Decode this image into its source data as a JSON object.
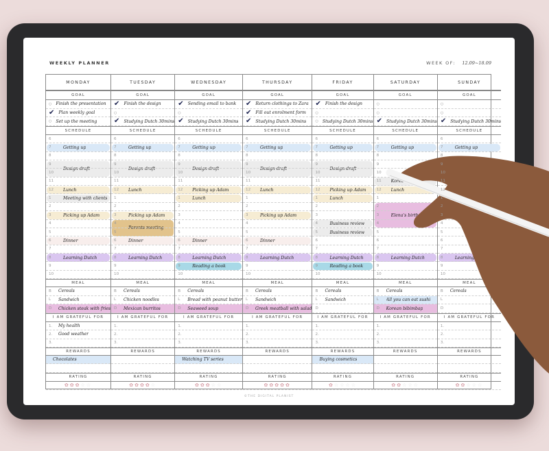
{
  "planner": {
    "title": "WEEKLY PLANNER",
    "week_of_label": "WEEK OF:",
    "week_of_value": "12.09~18.09",
    "footer": "©THE DIGITAL PLANIST",
    "section_labels": {
      "goal": "GOAL",
      "schedule": "SCHEDULE",
      "meal": "MEAL",
      "grateful": "I AM GRATEFUL FOR",
      "rewards": "REWARDS",
      "rating": "RATING"
    },
    "hours": [
      "6",
      "7",
      "8",
      "9",
      "10",
      "11",
      "12",
      "1",
      "2",
      "3",
      "4",
      "5",
      "6",
      "7",
      "8",
      "9",
      "10"
    ],
    "meal_keys": [
      "B",
      "L",
      "D"
    ],
    "grateful_nums": [
      "1.",
      "2.",
      "3."
    ],
    "rating_max": 5,
    "colors": {
      "blue": "#d9e8f7",
      "gray": "#ececec",
      "yellow": "#f6ecd3",
      "tan": "#e2c38c",
      "blush": "#f8eeec",
      "purple": "#dac6f0",
      "teal": "#a8d9e7",
      "pink": "#e8bde0"
    },
    "days": [
      {
        "name": "MONDAY",
        "goals": [
          {
            "done": false,
            "text": "Finish the presentation"
          },
          {
            "done": true,
            "text": "Plan weekly goal"
          },
          {
            "done": false,
            "text": "Set up the meeting"
          }
        ],
        "events": [
          {
            "hour": 1,
            "span": 1,
            "text": "Getting up",
            "color": "blue"
          },
          {
            "hour": 3,
            "span": 2,
            "text": "Design draft",
            "color": "gray"
          },
          {
            "hour": 6,
            "span": 1,
            "text": "Lunch",
            "color": "yellow"
          },
          {
            "hour": 7,
            "span": 1,
            "text": "Meeting with clients",
            "color": "gray"
          },
          {
            "hour": 9,
            "span": 1,
            "text": "Picking up Adam",
            "color": "yellow"
          },
          {
            "hour": 12,
            "span": 1,
            "text": "Dinner",
            "color": "blush"
          },
          {
            "hour": 14,
            "span": 1,
            "text": "Learning Dutch",
            "color": "purple"
          }
        ],
        "meals": [
          "Cereals",
          "Sandwich",
          "Chicken steak with fries"
        ],
        "dinner_highlight": true,
        "grateful": [
          "My health",
          "Good weather",
          ""
        ],
        "rewards": [
          "Chocolates",
          ""
        ],
        "rating": 3
      },
      {
        "name": "TUESDAY",
        "goals": [
          {
            "done": true,
            "text": "Finish the design"
          },
          {
            "done": false,
            "text": ""
          },
          {
            "done": true,
            "text": "Studying Dutch 30mins"
          }
        ],
        "events": [
          {
            "hour": 1,
            "span": 1,
            "text": "Getting up",
            "color": "blue"
          },
          {
            "hour": 3,
            "span": 2,
            "text": "Design draft",
            "color": "gray"
          },
          {
            "hour": 6,
            "span": 1,
            "text": "Lunch",
            "color": "yellow"
          },
          {
            "hour": 9,
            "span": 1,
            "text": "Picking up Adam",
            "color": "yellow"
          },
          {
            "hour": 10,
            "span": 2,
            "text": "Parents meeting",
            "color": "tan"
          },
          {
            "hour": 12,
            "span": 1,
            "text": "Dinner",
            "color": "blush"
          },
          {
            "hour": 14,
            "span": 1,
            "text": "Learning Dutch",
            "color": "purple"
          }
        ],
        "meals": [
          "Cereals",
          "Chicken noodles",
          "Mexican burritos"
        ],
        "dinner_highlight": true,
        "grateful": [
          "",
          "",
          ""
        ],
        "rewards": [
          "",
          ""
        ],
        "rating": 4
      },
      {
        "name": "WEDNESDAY",
        "goals": [
          {
            "done": true,
            "text": "Sending email to bank"
          },
          {
            "done": false,
            "text": ""
          },
          {
            "done": true,
            "text": "Studying Dutch 30mins"
          }
        ],
        "events": [
          {
            "hour": 1,
            "span": 1,
            "text": "Getting up",
            "color": "blue"
          },
          {
            "hour": 3,
            "span": 2,
            "text": "Design draft",
            "color": "gray"
          },
          {
            "hour": 6,
            "span": 1,
            "text": "Picking up Adam",
            "color": "yellow"
          },
          {
            "hour": 7,
            "span": 1,
            "text": "Lunch",
            "color": "yellow"
          },
          {
            "hour": 12,
            "span": 1,
            "text": "Dinner",
            "color": "blush"
          },
          {
            "hour": 14,
            "span": 1,
            "text": "Learning Dutch",
            "color": "purple"
          },
          {
            "hour": 15,
            "span": 1,
            "text": "Reading a book",
            "color": "teal"
          }
        ],
        "meals": [
          "Cereals",
          "Bread with peanut butter",
          "Seaweed soup"
        ],
        "dinner_highlight": true,
        "grateful": [
          "",
          "",
          ""
        ],
        "rewards": [
          "Watching TV series",
          ""
        ],
        "rating": 3
      },
      {
        "name": "THURSDAY",
        "goals": [
          {
            "done": true,
            "text": "Return clothings to Zara"
          },
          {
            "done": true,
            "text": "Fill out enrolment form"
          },
          {
            "done": true,
            "text": "Studying Dutch 30mins"
          }
        ],
        "events": [
          {
            "hour": 1,
            "span": 1,
            "text": "Getting up",
            "color": "blue"
          },
          {
            "hour": 3,
            "span": 2,
            "text": "Design draft",
            "color": "gray"
          },
          {
            "hour": 6,
            "span": 1,
            "text": "Lunch",
            "color": "yellow"
          },
          {
            "hour": 9,
            "span": 1,
            "text": "Picking up Adam",
            "color": "yellow"
          },
          {
            "hour": 12,
            "span": 1,
            "text": "Dinner",
            "color": "blush"
          },
          {
            "hour": 14,
            "span": 1,
            "text": "Learning Dutch",
            "color": "purple"
          }
        ],
        "meals": [
          "Cereals",
          "Sandwich",
          "Greek meatball with salad"
        ],
        "dinner_highlight": true,
        "grateful": [
          "",
          "",
          ""
        ],
        "rewards": [
          "",
          ""
        ],
        "rating": 5
      },
      {
        "name": "FRIDAY",
        "goals": [
          {
            "done": true,
            "text": "Finish the design"
          },
          {
            "done": false,
            "text": ""
          },
          {
            "done": false,
            "text": "Studying Dutch 30mins"
          }
        ],
        "events": [
          {
            "hour": 1,
            "span": 1,
            "text": "Getting up",
            "color": "blue"
          },
          {
            "hour": 3,
            "span": 2,
            "text": "Design draft",
            "color": "gray"
          },
          {
            "hour": 6,
            "span": 1,
            "text": "Picking up Adam",
            "color": "yellow"
          },
          {
            "hour": 7,
            "span": 1,
            "text": "Lunch",
            "color": "yellow"
          },
          {
            "hour": 10,
            "span": 1,
            "text": "Business review",
            "color": "gray"
          },
          {
            "hour": 11,
            "span": 1,
            "text": "Business review",
            "color": "gray"
          },
          {
            "hour": 14,
            "span": 1,
            "text": "Learning Dutch",
            "color": "purple"
          },
          {
            "hour": 15,
            "span": 1,
            "text": "Reading a book",
            "color": "teal"
          }
        ],
        "meals": [
          "Cereals",
          "Sandwich",
          ""
        ],
        "dinner_highlight": false,
        "grateful": [
          "",
          "",
          ""
        ],
        "rewards": [
          "Buying cosmetics",
          ""
        ],
        "rating": 1
      },
      {
        "name": "SATURDAY",
        "goals": [
          {
            "done": false,
            "text": ""
          },
          {
            "done": false,
            "text": ""
          },
          {
            "done": true,
            "text": "Studying Dutch 30mins"
          }
        ],
        "events": [
          {
            "hour": 1,
            "span": 1,
            "text": "Getting up",
            "color": "blue"
          },
          {
            "hour": 5,
            "span": 1,
            "text": "Korea",
            "color": "gray"
          },
          {
            "hour": 6,
            "span": 1,
            "text": "Lunch",
            "color": "yellow"
          },
          {
            "hour": 8,
            "span": 3,
            "text": "Elena's birthday party",
            "color": "pink"
          },
          {
            "hour": 14,
            "span": 1,
            "text": "Learning Dutch",
            "color": "purple"
          }
        ],
        "meals": [
          "Cereals",
          "All you can eat sushi",
          "Korean bibimbap"
        ],
        "dinner_highlight": true,
        "grateful": [
          "",
          "",
          ""
        ],
        "rewards": [
          "",
          ""
        ],
        "rating": 2
      },
      {
        "name": "SUNDAY",
        "goals": [
          {
            "done": false,
            "text": ""
          },
          {
            "done": false,
            "text": ""
          },
          {
            "done": true,
            "text": "Studying Dutch 30mins"
          }
        ],
        "events": [
          {
            "hour": 1,
            "span": 1,
            "text": "Getting up",
            "color": "blue"
          },
          {
            "hour": 14,
            "span": 1,
            "text": "Learning Dutch",
            "color": "purple"
          }
        ],
        "meals": [
          "Cereals",
          "",
          ""
        ],
        "dinner_highlight": false,
        "grateful": [
          "",
          "",
          ""
        ],
        "rewards": [
          "",
          ""
        ],
        "rating": 2
      }
    ]
  }
}
